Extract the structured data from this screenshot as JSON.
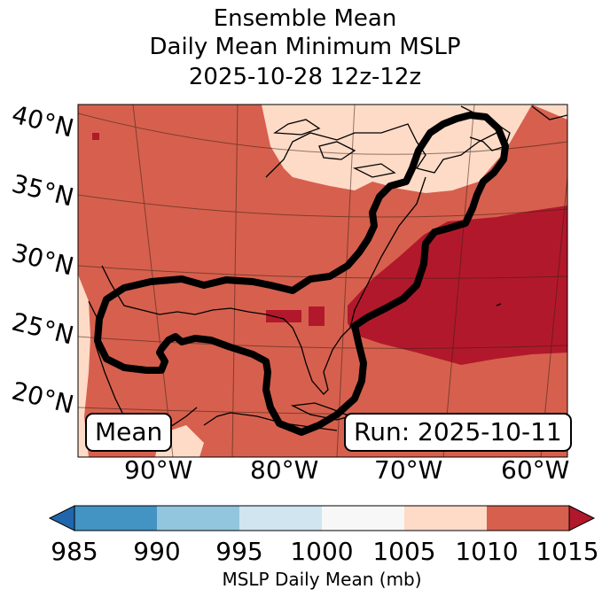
{
  "title": {
    "line1": "Ensemble Mean",
    "line2": "Daily Mean Minimum MSLP",
    "line3": "2025-10-28 12z-12z"
  },
  "map": {
    "lat_labels": [
      "40°N",
      "35°N",
      "30°N",
      "25°N",
      "20°N"
    ],
    "lon_labels": [
      "90°W",
      "80°W",
      "70°W",
      "60°W"
    ],
    "mean_label": "Mean",
    "run_label": "Run: 2025-10-11",
    "contour_level_mb": 1010,
    "contour_color": "#000000",
    "land_color": "#000000"
  },
  "colorbar": {
    "ticks": [
      "985",
      "990",
      "995",
      "1000",
      "1005",
      "1010",
      "1015"
    ],
    "label": "MSLP Daily Mean (mb)",
    "extend": "both",
    "colors": {
      "under": "#2166ac",
      "985-990": "#4393c3",
      "990-995": "#92c5de",
      "995-1000": "#d1e5f0",
      "1000-1005": "#f7f7f7",
      "1005-1010": "#fddbc7",
      "1010-1015": "#d6604d",
      "over": "#b2182b"
    }
  }
}
